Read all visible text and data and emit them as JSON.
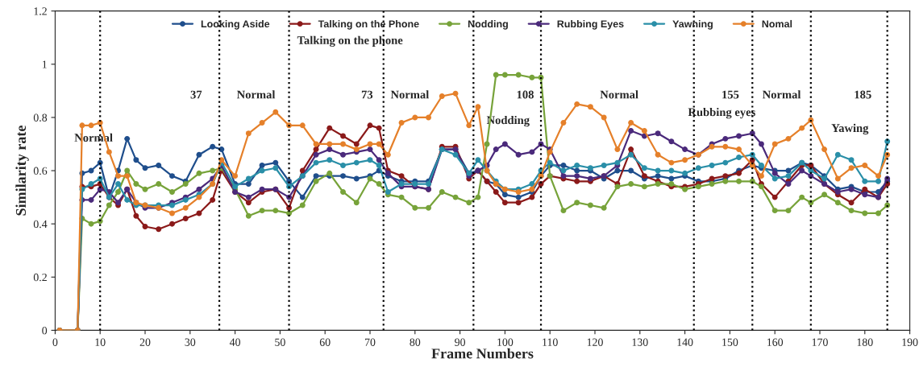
{
  "chart_data": {
    "type": "line",
    "xlabel": "Frame Numbers",
    "ylabel": "Similarity rate",
    "x": [
      1,
      5,
      6,
      8,
      10,
      12,
      14,
      16,
      18,
      20,
      23,
      26,
      29,
      32,
      35,
      37,
      40,
      43,
      46,
      49,
      52,
      55,
      58,
      61,
      64,
      67,
      70,
      72,
      74,
      77,
      80,
      83,
      86,
      89,
      92,
      94,
      96,
      98,
      100,
      103,
      106,
      108,
      110,
      113,
      116,
      119,
      122,
      125,
      128,
      131,
      134,
      137,
      140,
      143,
      146,
      149,
      152,
      155,
      157,
      160,
      163,
      166,
      168,
      171,
      174,
      177,
      180,
      183,
      185
    ],
    "series": [
      {
        "name": "Looking Aside",
        "color": "#1f4e8c",
        "values": [
          0,
          0,
          0.59,
          0.6,
          0.63,
          0.5,
          0.6,
          0.72,
          0.64,
          0.61,
          0.62,
          0.58,
          0.56,
          0.66,
          0.69,
          0.68,
          0.55,
          0.55,
          0.62,
          0.63,
          0.56,
          0.5,
          0.58,
          0.58,
          0.58,
          0.57,
          0.58,
          0.6,
          0.58,
          0.56,
          0.56,
          0.56,
          0.68,
          0.68,
          0.59,
          0.6,
          0.56,
          0.55,
          0.51,
          0.5,
          0.52,
          0.58,
          0.62,
          0.62,
          0.6,
          0.6,
          0.57,
          0.6,
          0.6,
          0.57,
          0.58,
          0.57,
          0.58,
          0.56,
          0.56,
          0.57,
          0.6,
          0.62,
          0.61,
          0.6,
          0.6,
          0.63,
          0.62,
          0.58,
          0.53,
          0.54,
          0.52,
          0.52,
          0.56
        ]
      },
      {
        "name": "Talking on the Phone",
        "color": "#8b1a1a",
        "values": [
          0,
          0,
          0.54,
          0.54,
          0.55,
          0.5,
          0.47,
          0.53,
          0.43,
          0.39,
          0.38,
          0.4,
          0.42,
          0.44,
          0.49,
          0.6,
          0.52,
          0.48,
          0.52,
          0.53,
          0.46,
          0.6,
          0.68,
          0.76,
          0.73,
          0.7,
          0.77,
          0.76,
          0.6,
          0.58,
          0.54,
          0.53,
          0.69,
          0.69,
          0.57,
          0.6,
          0.56,
          0.52,
          0.48,
          0.48,
          0.5,
          0.55,
          0.58,
          0.57,
          0.56,
          0.56,
          0.58,
          0.55,
          0.68,
          0.58,
          0.56,
          0.54,
          0.54,
          0.55,
          0.57,
          0.58,
          0.59,
          0.64,
          0.55,
          0.5,
          0.56,
          0.62,
          0.62,
          0.55,
          0.51,
          0.48,
          0.53,
          0.5,
          0.55
        ]
      },
      {
        "name": "Nodding",
        "color": "#77a33a",
        "values": [
          0,
          0,
          0.42,
          0.4,
          0.41,
          0.47,
          0.52,
          0.6,
          0.55,
          0.53,
          0.55,
          0.52,
          0.55,
          0.59,
          0.6,
          0.61,
          0.53,
          0.43,
          0.45,
          0.45,
          0.44,
          0.47,
          0.56,
          0.59,
          0.52,
          0.48,
          0.57,
          0.55,
          0.51,
          0.5,
          0.46,
          0.46,
          0.52,
          0.5,
          0.48,
          0.5,
          0.7,
          0.96,
          0.96,
          0.96,
          0.95,
          0.95,
          0.58,
          0.45,
          0.48,
          0.47,
          0.46,
          0.54,
          0.55,
          0.54,
          0.55,
          0.55,
          0.53,
          0.54,
          0.55,
          0.56,
          0.56,
          0.56,
          0.54,
          0.45,
          0.45,
          0.5,
          0.48,
          0.51,
          0.48,
          0.45,
          0.44,
          0.44,
          0.47
        ]
      },
      {
        "name": "Rubbing Eyes",
        "color": "#4b2a7b",
        "values": [
          0,
          0,
          0.49,
          0.49,
          0.53,
          0.52,
          0.48,
          0.53,
          0.48,
          0.46,
          0.46,
          0.48,
          0.5,
          0.53,
          0.57,
          0.62,
          0.52,
          0.5,
          0.53,
          0.53,
          0.5,
          0.58,
          0.66,
          0.68,
          0.66,
          0.67,
          0.68,
          0.64,
          0.59,
          0.54,
          0.54,
          0.53,
          0.68,
          0.68,
          0.58,
          0.6,
          0.62,
          0.68,
          0.7,
          0.66,
          0.67,
          0.7,
          0.68,
          0.58,
          0.58,
          0.57,
          0.58,
          0.62,
          0.75,
          0.73,
          0.74,
          0.71,
          0.68,
          0.66,
          0.7,
          0.72,
          0.73,
          0.74,
          0.7,
          0.59,
          0.55,
          0.6,
          0.58,
          0.55,
          0.52,
          0.53,
          0.51,
          0.5,
          0.57
        ]
      },
      {
        "name": "Yawning",
        "color": "#2a8fa8",
        "values": [
          0,
          0,
          0.53,
          0.55,
          0.57,
          0.5,
          0.55,
          0.49,
          0.47,
          0.47,
          0.47,
          0.47,
          0.49,
          0.51,
          0.55,
          0.63,
          0.54,
          0.57,
          0.6,
          0.61,
          0.54,
          0.58,
          0.63,
          0.64,
          0.62,
          0.63,
          0.64,
          0.62,
          0.52,
          0.55,
          0.55,
          0.55,
          0.68,
          0.66,
          0.59,
          0.64,
          0.6,
          0.56,
          0.53,
          0.53,
          0.55,
          0.6,
          0.63,
          0.6,
          0.62,
          0.61,
          0.62,
          0.63,
          0.66,
          0.61,
          0.6,
          0.6,
          0.59,
          0.61,
          0.62,
          0.63,
          0.65,
          0.66,
          0.62,
          0.57,
          0.58,
          0.63,
          0.6,
          0.57,
          0.66,
          0.64,
          0.56,
          0.56,
          0.71
        ]
      },
      {
        "name": "Nomal",
        "color": "#e5802a",
        "values": [
          0,
          0,
          0.77,
          0.77,
          0.78,
          0.67,
          0.58,
          0.58,
          0.48,
          0.47,
          0.46,
          0.44,
          0.46,
          0.5,
          0.55,
          0.64,
          0.58,
          0.74,
          0.78,
          0.82,
          0.77,
          0.77,
          0.7,
          0.7,
          0.7,
          0.68,
          0.7,
          0.7,
          0.66,
          0.78,
          0.8,
          0.8,
          0.88,
          0.89,
          0.77,
          0.84,
          0.6,
          0.55,
          0.53,
          0.52,
          0.53,
          0.58,
          0.67,
          0.78,
          0.85,
          0.84,
          0.8,
          0.68,
          0.78,
          0.75,
          0.66,
          0.63,
          0.64,
          0.66,
          0.69,
          0.69,
          0.68,
          0.62,
          0.58,
          0.7,
          0.72,
          0.76,
          0.79,
          0.68,
          0.57,
          0.61,
          0.62,
          0.58,
          0.66
        ]
      }
    ],
    "xlim": [
      0,
      190
    ],
    "xticks": [
      0,
      10,
      20,
      30,
      40,
      50,
      60,
      70,
      80,
      90,
      100,
      110,
      120,
      130,
      140,
      150,
      160,
      170,
      180,
      190
    ],
    "ylim": [
      0,
      1.2
    ],
    "yticks": [
      0,
      0.2,
      0.4,
      0.6,
      0.8,
      1,
      1.2
    ],
    "marker": "circle",
    "grid": false,
    "legend": "top",
    "ref_lines": [
      {
        "axis": "x",
        "value": 10,
        "line_style": "dotted",
        "color": "#000000"
      },
      {
        "axis": "x",
        "value": 36.5,
        "line_style": "dotted",
        "color": "#000000"
      },
      {
        "axis": "x",
        "value": 52,
        "line_style": "dotted",
        "color": "#000000"
      },
      {
        "axis": "x",
        "value": 73,
        "line_style": "dotted",
        "color": "#000000"
      },
      {
        "axis": "x",
        "value": 93,
        "line_style": "dotted",
        "color": "#000000"
      },
      {
        "axis": "x",
        "value": 108,
        "line_style": "dotted",
        "color": "#000000"
      },
      {
        "axis": "x",
        "value": 142,
        "line_style": "dotted",
        "color": "#000000"
      },
      {
        "axis": "x",
        "value": 155,
        "line_style": "dotted",
        "color": "#000000"
      },
      {
        "axis": "x",
        "value": 168,
        "line_style": "dotted",
        "color": "#000000"
      },
      {
        "axis": "x",
        "value": 185,
        "line_style": "dotted",
        "color": "#000000"
      }
    ],
    "annotations": [
      "Normal",
      "37",
      "Normal",
      "Talking on the phone",
      "73",
      "Normal",
      "108",
      "Nodding",
      "Normal",
      "155",
      "Rubbing eyes",
      "Normal",
      "185",
      "Yawing"
    ]
  }
}
